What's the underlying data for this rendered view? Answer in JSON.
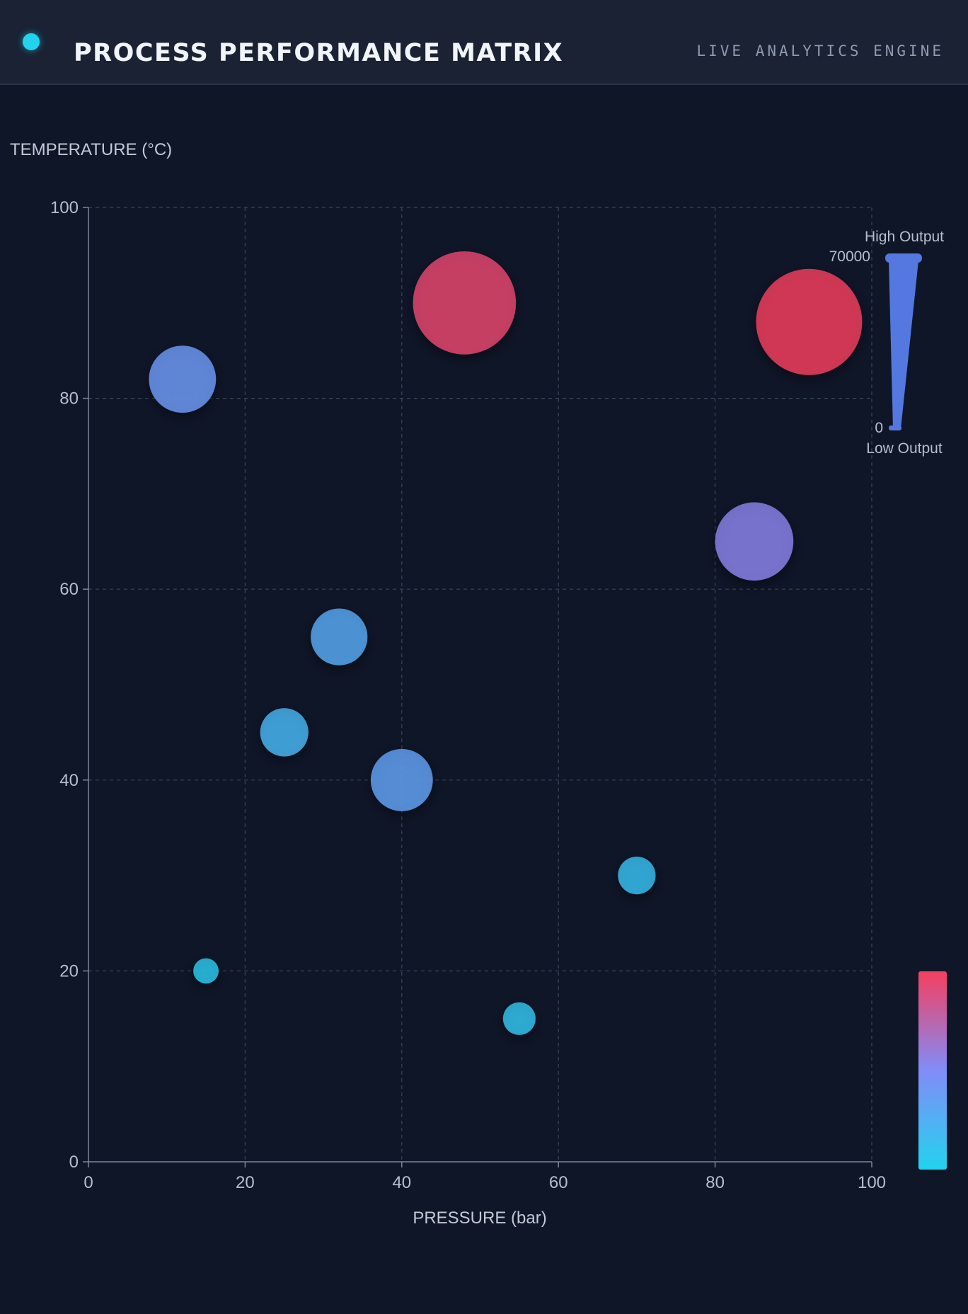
{
  "header": {
    "title": "PROCESS PERFORMANCE MATRIX",
    "subtitle": "LIVE ANALYTICS ENGINE"
  },
  "colors": {
    "accent": "#22d3ee",
    "background": "#0f1628",
    "header_background": "#1a2234",
    "scale_low": "#22d3ee",
    "scale_mid": "#818cf8",
    "scale_high": "#f43f5e",
    "size_legend": "#5578e0"
  },
  "chart_data": {
    "type": "scatter",
    "subtype": "bubble",
    "xlabel": "PRESSURE (bar)",
    "ylabel": "TEMPERATURE (°C)",
    "xlim": [
      0,
      100
    ],
    "ylim": [
      0,
      100
    ],
    "xticks": [
      "0",
      "20",
      "40",
      "60",
      "80",
      "100"
    ],
    "yticks": [
      "0",
      "20",
      "40",
      "60",
      "80",
      "100"
    ],
    "grid": true,
    "points": [
      {
        "x": 12,
        "y": 82,
        "output": 28000
      },
      {
        "x": 48,
        "y": 90,
        "output": 66000
      },
      {
        "x": 92,
        "y": 88,
        "output": 70000
      },
      {
        "x": 85,
        "y": 65,
        "output": 38000
      },
      {
        "x": 32,
        "y": 55,
        "output": 20000
      },
      {
        "x": 25,
        "y": 45,
        "output": 14500
      },
      {
        "x": 40,
        "y": 40,
        "output": 24000
      },
      {
        "x": 70,
        "y": 30,
        "output": 8800
      },
      {
        "x": 15,
        "y": 20,
        "output": 4000
      },
      {
        "x": 55,
        "y": 15,
        "output": 6600
      }
    ],
    "size_legend": {
      "max_value": "70000",
      "min_value": "0",
      "high_label": "High Output",
      "low_label": "Low Output",
      "placement": "top-right"
    },
    "color_legend": {
      "placement": "bottom-right"
    }
  }
}
